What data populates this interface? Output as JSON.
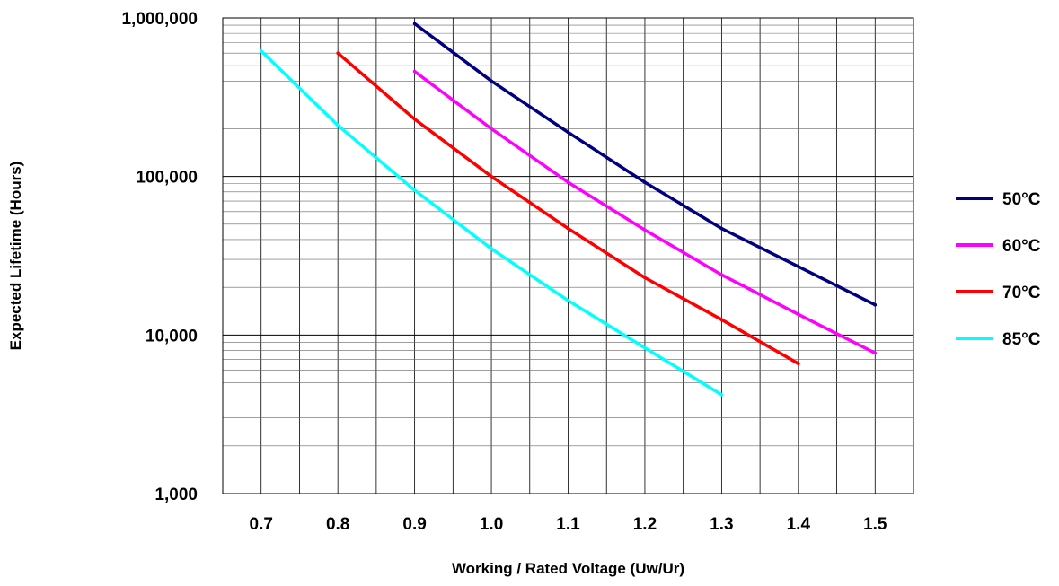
{
  "chart_data": {
    "type": "line",
    "title": "",
    "xlabel": "Working / Rated Voltage (Uw/Ur)",
    "ylabel": "Expected Lifetime (Hours)",
    "x_scale": "linear",
    "y_scale": "log",
    "xlim": [
      0.65,
      1.55
    ],
    "ylim": [
      1000,
      1000000
    ],
    "grid": true,
    "legend_position": "right",
    "x_ticks": [
      0.7,
      0.8,
      0.9,
      1.0,
      1.1,
      1.2,
      1.3,
      1.4,
      1.5
    ],
    "x_tick_labels": [
      "0.7",
      "0.8",
      "0.9",
      "1.0",
      "1.1",
      "1.2",
      "1.3",
      "1.4",
      "1.5"
    ],
    "y_ticks": [
      1000,
      10000,
      100000,
      1000000
    ],
    "y_tick_labels": [
      "1,000",
      "10,000",
      "100,000",
      "1,000,000"
    ],
    "series": [
      {
        "name": "50°C",
        "color": "#000080",
        "x": [
          0.9,
          1.0,
          1.1,
          1.2,
          1.3,
          1.4,
          1.5
        ],
        "y": [
          920000,
          400000,
          190000,
          92000,
          47000,
          27000,
          15500
        ]
      },
      {
        "name": "60°C",
        "color": "#FF00FF",
        "x": [
          0.9,
          1.0,
          1.1,
          1.2,
          1.3,
          1.4,
          1.5
        ],
        "y": [
          460000,
          200000,
          92000,
          46000,
          24000,
          13500,
          7700
        ]
      },
      {
        "name": "70°C",
        "color": "#FF0000",
        "x": [
          0.8,
          0.9,
          1.0,
          1.1,
          1.2,
          1.3,
          1.4
        ],
        "y": [
          600000,
          230000,
          100000,
          47000,
          23000,
          12500,
          6600
        ]
      },
      {
        "name": "85°C",
        "color": "#00FFFF",
        "x": [
          0.7,
          0.8,
          0.9,
          1.0,
          1.1,
          1.2,
          1.3
        ],
        "y": [
          620000,
          210000,
          82000,
          35000,
          16500,
          8300,
          4200
        ]
      }
    ]
  }
}
